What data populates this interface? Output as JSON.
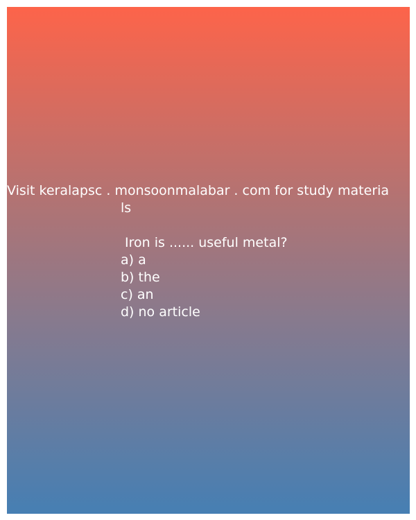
{
  "card": {
    "colors": {
      "gradient_top": "#fd644a",
      "gradient_mid": "#b27373",
      "gradient_low": "#877a8e",
      "gradient_bottom": "#467fb3",
      "text": "#ffffff"
    },
    "promo_line_1": "Visit keralapsc . monsoonmalabar . com for study materia",
    "promo_line_2": "ls",
    "question": " Iron is ...... useful metal?",
    "options": [
      "a) a",
      "b) the",
      "c) an",
      "d) no article"
    ]
  }
}
